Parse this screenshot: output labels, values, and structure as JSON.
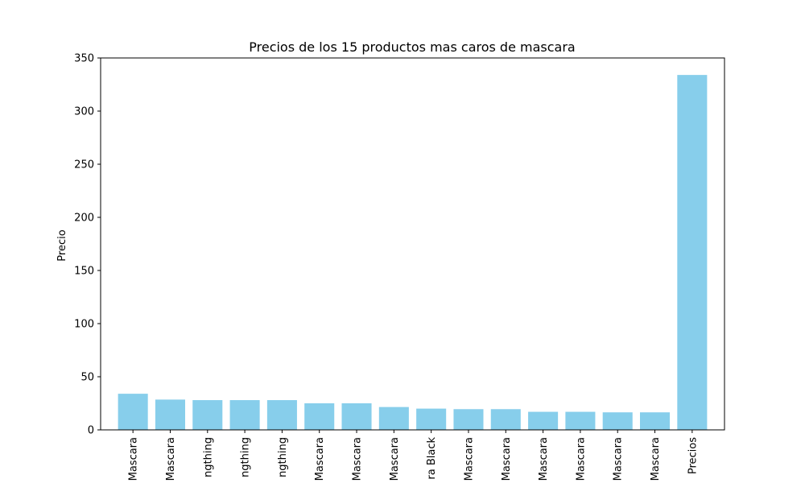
{
  "chart_data": {
    "type": "bar",
    "title": "Precios de los 15 productos mas caros de mascara",
    "xlabel": "",
    "ylabel": "Precio",
    "ylim": [
      0,
      350
    ],
    "yticks": [
      0,
      50,
      100,
      150,
      200,
      250,
      300,
      350
    ],
    "ytick_labels": [
      "0",
      "50",
      "100",
      "150",
      "200",
      "250",
      "300",
      "350"
    ],
    "grid": false,
    "bar_color": "#87CEEB",
    "categories": [
      "Mascara",
      "Mascara",
      "ngthing",
      "ngthing",
      "ngthing",
      "Mascara",
      "Mascara",
      "Mascara",
      "ra Black",
      "Mascara",
      "Mascara",
      "Mascara",
      "Mascara",
      "Mascara",
      "Mascara",
      "Precios"
    ],
    "values": [
      34,
      28.5,
      28,
      28,
      28,
      25,
      25,
      21.5,
      20,
      19.5,
      19.5,
      17,
      17,
      16.5,
      16.5,
      334
    ]
  }
}
